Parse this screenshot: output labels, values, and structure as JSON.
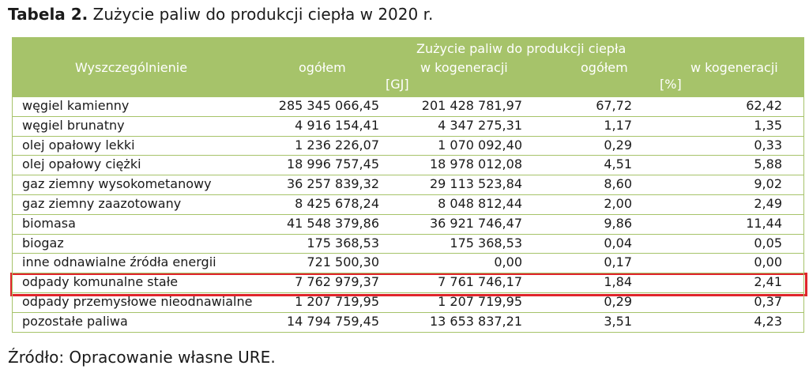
{
  "title": {
    "label": "Tabela 2.",
    "text": "Zużycie paliw do produkcji ciepła w 2020 r."
  },
  "table": {
    "header": {
      "col0": "Wyszczególnienie",
      "group": "Zużycie paliw do produkcji ciepła",
      "col1": "ogółem",
      "col2": "w kogeneracji",
      "col3": "ogółem",
      "col4": "w kogeneracji",
      "unit1": "[GJ]",
      "unit2": "[%]"
    },
    "rows": [
      [
        "węgiel kamienny",
        "285 345 066,45",
        "201 428 781,97",
        "67,72",
        "62,42"
      ],
      [
        "węgiel brunatny",
        "4 916 154,41",
        "4 347 275,31",
        "1,17",
        "1,35"
      ],
      [
        "olej opałowy lekki",
        "1 236 226,07",
        "1 070 092,40",
        "0,29",
        "0,33"
      ],
      [
        "olej opałowy ciężki",
        "18 996 757,45",
        "18 978 012,08",
        "4,51",
        "5,88"
      ],
      [
        "gaz ziemny wysokometanowy",
        "36 257 839,32",
        "29 113 523,84",
        "8,60",
        "9,02"
      ],
      [
        "gaz ziemny zaazotowany",
        "8 425 678,24",
        "8 048 812,44",
        "2,00",
        "2,49"
      ],
      [
        "biomasa",
        "41 548 379,86",
        "36 921 746,47",
        "9,86",
        "11,44"
      ],
      [
        "biogaz",
        "175 368,53",
        "175 368,53",
        "0,04",
        "0,05"
      ],
      [
        "inne odnawialne źródła energii",
        "721 500,30",
        "0,00",
        "0,17",
        "0,00"
      ],
      [
        "odpady komunalne stałe",
        "7 762 979,37",
        "7 761 746,17",
        "1,84",
        "2,41"
      ],
      [
        "odpady przemysłowe nieodnawialne",
        "1 207 719,95",
        "1 207 719,95",
        "0,29",
        "0,37"
      ],
      [
        "pozostałe paliwa",
        "14 794 759,45",
        "13 653 837,21",
        "3,51",
        "4,23"
      ]
    ]
  },
  "source": "Źródło: Opracowanie własne URE."
}
